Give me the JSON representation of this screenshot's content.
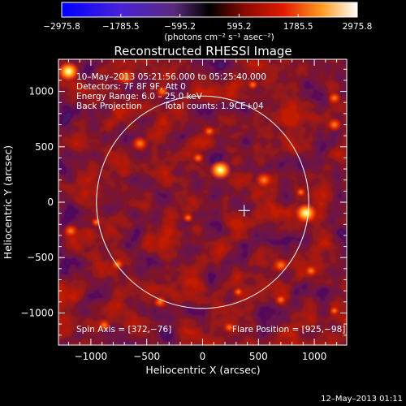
{
  "chart_data": {
    "type": "heatmap",
    "title": "Reconstructed RHESSI Image",
    "xlabel": "Heliocentric X (arcsec)",
    "ylabel": "Heliocentric Y (arcsec)",
    "xlim": [
      -1290,
      1290
    ],
    "ylim": [
      -1290,
      1290
    ],
    "x_ticks": [
      -1000,
      -500,
      0,
      500,
      1000
    ],
    "y_ticks": [
      -1000,
      -500,
      0,
      500,
      1000
    ],
    "x_tick_labels": [
      "−1000",
      "−500",
      "0",
      "500",
      "1000"
    ],
    "y_tick_labels": [
      "−1000",
      "−500",
      "0",
      "500",
      "1000"
    ],
    "colorbar": {
      "min": -2975.8,
      "max": 2975.8,
      "tick_values": [
        -2975.8,
        -1785.5,
        -595.2,
        595.2,
        1785.5,
        2975.8
      ],
      "tick_labels": [
        "−2975.8",
        "−1785.5",
        "−595.2",
        "595.2",
        "1785.5",
        "2975.8"
      ],
      "units_label": "(photons cm⁻² s⁻¹ asec⁻²)"
    },
    "info_lines": [
      "10–May–2013 05:21:56.000 to 05:25:40.000",
      "Detectors: 7F 8F 9F, Att 0",
      "Energy Range: 6.0 – 25.0 keV"
    ],
    "method_label": "Back Projection",
    "total_counts_label": "Total counts: 1.9CE+04",
    "spin_axis_label": "Spin Axis = [372,−76]",
    "flare_position_label": "Flare Position = [925,−98]",
    "spin_axis": [
      372,
      -76
    ],
    "flare_position": [
      925,
      -98
    ],
    "solar_limb_radius": 950,
    "bright_sources": [
      {
        "x": 160,
        "y": 290,
        "value": 2900
      },
      {
        "x": 925,
        "y": -98,
        "value": 2700
      },
      {
        "x": 550,
        "y": 200,
        "value": 2300
      },
      {
        "x": -1200,
        "y": 1180,
        "value": 2500
      },
      {
        "x": -690,
        "y": 1130,
        "value": 2400
      },
      {
        "x": -360,
        "y": 1000,
        "value": 2000
      },
      {
        "x": -560,
        "y": 530,
        "value": 2200
      },
      {
        "x": 1180,
        "y": 700,
        "value": 2100
      },
      {
        "x": 1180,
        "y": 940,
        "value": 2000
      },
      {
        "x": 700,
        "y": -570,
        "value": 2200
      },
      {
        "x": 970,
        "y": -620,
        "value": 2000
      },
      {
        "x": -40,
        "y": 400,
        "value": 1900
      },
      {
        "x": -130,
        "y": -140,
        "value": 1800
      },
      {
        "x": 60,
        "y": 640,
        "value": 1900
      },
      {
        "x": 320,
        "y": -810,
        "value": 1800
      },
      {
        "x": 700,
        "y": -880,
        "value": 1900
      },
      {
        "x": 880,
        "y": 90,
        "value": 1800
      },
      {
        "x": -760,
        "y": -560,
        "value": 2000
      },
      {
        "x": -950,
        "y": -180,
        "value": 1800
      },
      {
        "x": -1180,
        "y": -260,
        "value": 2100
      },
      {
        "x": -880,
        "y": -1110,
        "value": 2000
      },
      {
        "x": 240,
        "y": -1130,
        "value": 1900
      },
      {
        "x": 1180,
        "y": -980,
        "value": 1800
      },
      {
        "x": 450,
        "y": 1060,
        "value": 1800
      },
      {
        "x": -380,
        "y": -900,
        "value": 2000
      }
    ]
  },
  "timestamp": "12–May–2013 01:11"
}
